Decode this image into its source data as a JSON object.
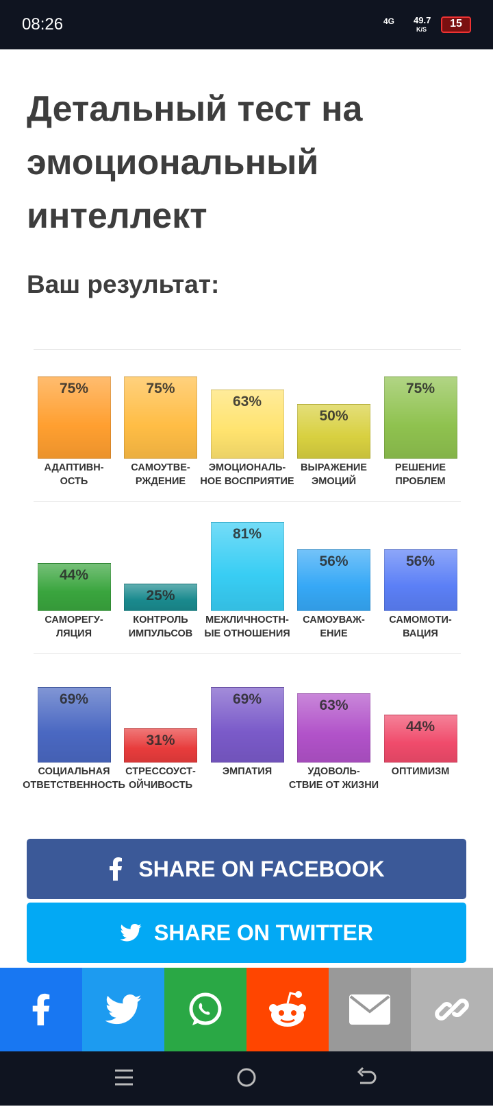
{
  "status_bar": {
    "time": "08:26",
    "network": "4G",
    "speed": "49.7",
    "speed_unit": "K/S",
    "battery": "15"
  },
  "header": {
    "title": "Детальный тест на эмоциональный интеллект",
    "subtitle": "Ваш результат:"
  },
  "chart_data": [
    {
      "type": "bar",
      "categories": [
        "АДАПТИВН-\nОСТЬ",
        "САМОУТВЕ-\nРЖДЕНИЕ",
        "ЭМОЦИОНАЛЬ-\nНОЕ ВОСПРИЯТИЕ",
        "ВЫРАЖЕНИЕ\nЭМОЦИЙ",
        "РЕШЕНИЕ\nПРОБЛЕМ"
      ],
      "values": [
        75,
        75,
        63,
        50,
        75
      ],
      "value_labels": [
        "75%",
        "75%",
        "63%",
        "50%",
        "75%"
      ],
      "colors": [
        "#ff9f30",
        "#ffbd45",
        "#ffe36e",
        "#d8d040",
        "#8fc24f"
      ],
      "ylim": [
        0,
        100
      ]
    },
    {
      "type": "bar",
      "categories": [
        "САМОРЕГУ-\nЛЯЦИЯ",
        "КОНТРОЛЬ\nИМПУЛЬСОВ",
        "МЕЖЛИЧНОСТН-\nЫЕ ОТНОШЕНИЯ",
        "САМОУВАЖ-\nЕНИЕ",
        "САМОМОТИ-\nВАЦИЯ"
      ],
      "values": [
        44,
        25,
        81,
        56,
        56
      ],
      "value_labels": [
        "44%",
        "25%",
        "81%",
        "56%",
        "56%"
      ],
      "colors": [
        "#3aa53e",
        "#1a8a8e",
        "#38cdf4",
        "#36a8f6",
        "#5b7ff6"
      ],
      "ylim": [
        0,
        100
      ]
    },
    {
      "type": "bar",
      "categories": [
        "СОЦИАЛЬНАЯ\nОТВЕТСТВЕННОСТЬ",
        "СТРЕССОУСТ-\nОЙЧИВОСТЬ",
        "ЭМПАТИЯ",
        "УДОВОЛЬ-\nСТВИЕ ОТ ЖИЗНИ",
        "ОПТИМИЗМ"
      ],
      "values": [
        69,
        31,
        69,
        63,
        44
      ],
      "value_labels": [
        "69%",
        "31%",
        "69%",
        "63%",
        "44%"
      ],
      "colors": [
        "#4a68c2",
        "#e83c3c",
        "#7a5ac9",
        "#b152c9",
        "#f04b6b"
      ],
      "ylim": [
        0,
        100
      ]
    }
  ],
  "buttons": {
    "facebook": "SHARE ON FACEBOOK",
    "twitter": "SHARE ON TWITTER"
  }
}
